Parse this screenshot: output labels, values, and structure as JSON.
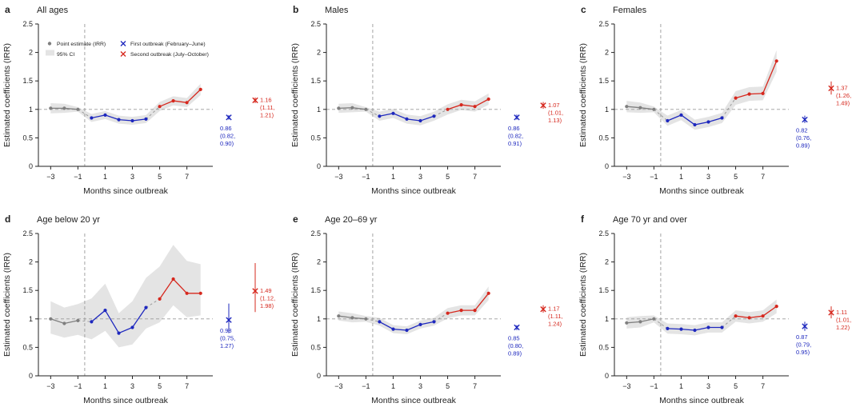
{
  "figure": {
    "background": "#ffffff",
    "ylabel": "Estimated coefficients (IRR)",
    "xlabel": "Months since outbreak",
    "ylim": [
      0,
      2.5
    ],
    "xlim": [
      -3.9,
      8.9
    ],
    "yticks": [
      0,
      0.5,
      1,
      1.5,
      2,
      2.5
    ],
    "ytick_labels": [
      "0",
      "0.5",
      "1",
      "1.5",
      "2",
      "2.5"
    ],
    "xticks": [
      -3,
      -1,
      1,
      3,
      5,
      7
    ],
    "xtick_labels": [
      "−3",
      "−1",
      "1",
      "3",
      "5",
      "7"
    ],
    "reference_line_y": 1,
    "outbreak_line_x": -0.5,
    "grid": false,
    "colors": {
      "pre": "#7f7f7f",
      "first": "#1e28be",
      "second": "#d6281e",
      "ci_band": "#e4e4e4",
      "dashed": "#9a9a9a",
      "axis": "#222222"
    },
    "legend": {
      "position": "top-left of panel a",
      "items": [
        {
          "marker": "dot",
          "phase": "pre",
          "label": "Point estimate (IRR)"
        },
        {
          "marker": "band",
          "phase": "ci",
          "label": "95% CI"
        },
        {
          "marker": "x",
          "phase": "first",
          "label": "First outbreak (February–June)"
        },
        {
          "marker": "x",
          "phase": "second",
          "label": "Second outbreak (July–October)"
        }
      ]
    }
  },
  "chart_data": [
    {
      "type": "line",
      "panel": "a",
      "title": "All ages",
      "show_legend": true,
      "series": [
        {
          "name": "pre-outbreak",
          "phase": "pre",
          "x": [
            -3,
            -2,
            -1
          ],
          "y": [
            1.02,
            1.02,
            1.0
          ],
          "lo": [
            0.93,
            0.94,
            0.96
          ],
          "hi": [
            1.11,
            1.1,
            1.04
          ]
        },
        {
          "name": "first-outbreak",
          "phase": "first",
          "x": [
            0,
            1,
            2,
            3,
            4
          ],
          "y": [
            0.85,
            0.9,
            0.82,
            0.8,
            0.83
          ],
          "lo": [
            0.78,
            0.83,
            0.75,
            0.73,
            0.76
          ],
          "hi": [
            0.92,
            0.97,
            0.89,
            0.87,
            0.9
          ]
        },
        {
          "name": "second-outbreak",
          "phase": "second",
          "x": [
            5,
            6,
            7,
            8
          ],
          "y": [
            1.05,
            1.15,
            1.12,
            1.35
          ],
          "lo": [
            0.97,
            1.07,
            1.04,
            1.25
          ],
          "hi": [
            1.13,
            1.23,
            1.2,
            1.45
          ]
        }
      ],
      "summary": {
        "first": {
          "est": "0.86",
          "lo": "0.82",
          "hi": "0.90"
        },
        "second": {
          "est": "1.16",
          "lo": "1.11",
          "hi": "1.21"
        }
      }
    },
    {
      "type": "line",
      "panel": "b",
      "title": "Males",
      "show_legend": false,
      "series": [
        {
          "name": "pre-outbreak",
          "phase": "pre",
          "x": [
            -3,
            -2,
            -1
          ],
          "y": [
            1.02,
            1.03,
            1.0
          ],
          "lo": [
            0.94,
            0.95,
            0.96
          ],
          "hi": [
            1.1,
            1.11,
            1.04
          ]
        },
        {
          "name": "first-outbreak",
          "phase": "first",
          "x": [
            0,
            1,
            2,
            3,
            4
          ],
          "y": [
            0.88,
            0.93,
            0.83,
            0.8,
            0.88
          ],
          "lo": [
            0.8,
            0.85,
            0.75,
            0.72,
            0.8
          ],
          "hi": [
            0.96,
            1.01,
            0.91,
            0.88,
            0.96
          ]
        },
        {
          "name": "second-outbreak",
          "phase": "second",
          "x": [
            5,
            6,
            7,
            8
          ],
          "y": [
            1.0,
            1.08,
            1.05,
            1.18
          ],
          "lo": [
            0.91,
            0.99,
            0.96,
            1.08
          ],
          "hi": [
            1.09,
            1.17,
            1.14,
            1.28
          ]
        }
      ],
      "summary": {
        "first": {
          "est": "0.86",
          "lo": "0.82",
          "hi": "0.91"
        },
        "second": {
          "est": "1.07",
          "lo": "1.01",
          "hi": "1.13"
        }
      }
    },
    {
      "type": "line",
      "panel": "c",
      "title": "Females",
      "show_legend": false,
      "series": [
        {
          "name": "pre-outbreak",
          "phase": "pre",
          "x": [
            -3,
            -2,
            -1
          ],
          "y": [
            1.05,
            1.03,
            1.0
          ],
          "lo": [
            0.95,
            0.94,
            0.95
          ],
          "hi": [
            1.15,
            1.12,
            1.05
          ]
        },
        {
          "name": "first-outbreak",
          "phase": "first",
          "x": [
            0,
            1,
            2,
            3,
            4
          ],
          "y": [
            0.8,
            0.9,
            0.73,
            0.78,
            0.85
          ],
          "lo": [
            0.71,
            0.81,
            0.64,
            0.69,
            0.76
          ],
          "hi": [
            0.89,
            0.99,
            0.82,
            0.87,
            0.94
          ]
        },
        {
          "name": "second-outbreak",
          "phase": "second",
          "x": [
            5,
            6,
            7,
            8
          ],
          "y": [
            1.2,
            1.27,
            1.28,
            1.85
          ],
          "lo": [
            1.08,
            1.15,
            1.16,
            1.66
          ],
          "hi": [
            1.32,
            1.39,
            1.4,
            2.04
          ]
        }
      ],
      "summary": {
        "first": {
          "est": "0.82",
          "lo": "0.76",
          "hi": "0.89"
        },
        "second": {
          "est": "1.37",
          "lo": "1.26",
          "hi": "1.49"
        }
      }
    },
    {
      "type": "line",
      "panel": "d",
      "title": "Age below 20 yr",
      "show_legend": false,
      "series": [
        {
          "name": "pre-outbreak",
          "phase": "pre",
          "x": [
            -3,
            -2,
            -1
          ],
          "y": [
            1.0,
            0.92,
            0.97
          ],
          "lo": [
            0.74,
            0.67,
            0.72
          ],
          "hi": [
            1.31,
            1.2,
            1.26
          ]
        },
        {
          "name": "first-outbreak",
          "phase": "first",
          "x": [
            0,
            1,
            2,
            3,
            4
          ],
          "y": [
            0.95,
            1.15,
            0.75,
            0.85,
            1.2
          ],
          "lo": [
            0.64,
            0.79,
            0.5,
            0.55,
            0.83
          ],
          "hi": [
            1.36,
            1.62,
            1.1,
            1.31,
            1.72
          ]
        },
        {
          "name": "second-outbreak",
          "phase": "second",
          "x": [
            5,
            6,
            7,
            8
          ],
          "y": [
            1.35,
            1.7,
            1.45,
            1.45
          ],
          "lo": [
            0.94,
            1.24,
            1.03,
            1.06
          ],
          "hi": [
            1.92,
            2.3,
            2.02,
            1.96
          ]
        }
      ],
      "summary": {
        "first": {
          "est": "0.98",
          "lo": "0.75",
          "hi": "1.27"
        },
        "second": {
          "est": "1.49",
          "lo": "1.12",
          "hi": "1.98"
        }
      }
    },
    {
      "type": "line",
      "panel": "e",
      "title": "Age 20–69 yr",
      "show_legend": false,
      "series": [
        {
          "name": "pre-outbreak",
          "phase": "pre",
          "x": [
            -3,
            -2,
            -1
          ],
          "y": [
            1.05,
            1.02,
            1.0
          ],
          "lo": [
            0.97,
            0.94,
            0.95
          ],
          "hi": [
            1.13,
            1.1,
            1.05
          ]
        },
        {
          "name": "first-outbreak",
          "phase": "first",
          "x": [
            0,
            1,
            2,
            3,
            4
          ],
          "y": [
            0.95,
            0.82,
            0.8,
            0.9,
            0.95
          ],
          "lo": [
            0.88,
            0.75,
            0.73,
            0.83,
            0.88
          ],
          "hi": [
            1.02,
            0.89,
            0.87,
            0.97,
            1.02
          ]
        },
        {
          "name": "second-outbreak",
          "phase": "second",
          "x": [
            5,
            6,
            7,
            8
          ],
          "y": [
            1.1,
            1.15,
            1.15,
            1.45
          ],
          "lo": [
            1.01,
            1.06,
            1.06,
            1.33
          ],
          "hi": [
            1.19,
            1.24,
            1.24,
            1.57
          ]
        }
      ],
      "summary": {
        "first": {
          "est": "0.85",
          "lo": "0.80",
          "hi": "0.89"
        },
        "second": {
          "est": "1.17",
          "lo": "1.11",
          "hi": "1.24"
        }
      }
    },
    {
      "type": "line",
      "panel": "f",
      "title": "Age 70 yr and over",
      "show_legend": false,
      "series": [
        {
          "name": "pre-outbreak",
          "phase": "pre",
          "x": [
            -3,
            -2,
            -1
          ],
          "y": [
            0.93,
            0.95,
            1.0
          ],
          "lo": [
            0.83,
            0.85,
            0.94
          ],
          "hi": [
            1.03,
            1.05,
            1.06
          ]
        },
        {
          "name": "first-outbreak",
          "phase": "first",
          "x": [
            0,
            1,
            2,
            3,
            4
          ],
          "y": [
            0.83,
            0.82,
            0.8,
            0.85,
            0.85
          ],
          "lo": [
            0.74,
            0.73,
            0.71,
            0.76,
            0.76
          ],
          "hi": [
            0.92,
            0.91,
            0.89,
            0.94,
            0.94
          ]
        },
        {
          "name": "second-outbreak",
          "phase": "second",
          "x": [
            5,
            6,
            7,
            8
          ],
          "y": [
            1.05,
            1.02,
            1.05,
            1.22
          ],
          "lo": [
            0.95,
            0.92,
            0.95,
            1.1
          ],
          "hi": [
            1.15,
            1.12,
            1.15,
            1.34
          ]
        }
      ],
      "summary": {
        "first": {
          "est": "0.87",
          "lo": "0.79",
          "hi": "0.95"
        },
        "second": {
          "est": "1.11",
          "lo": "1.01",
          "hi": "1.22"
        }
      }
    }
  ]
}
